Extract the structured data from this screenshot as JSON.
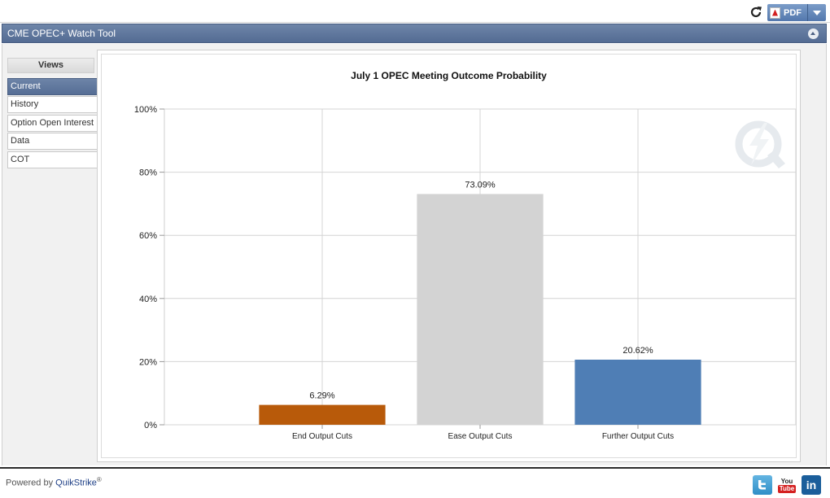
{
  "toolbar": {
    "pdf_label": "PDF"
  },
  "app": {
    "title": "CME OPEC+ Watch Tool"
  },
  "sidebar": {
    "header": "Views",
    "items": [
      {
        "label": "Current",
        "active": true
      },
      {
        "label": "History",
        "active": false
      },
      {
        "label": "Option Open Interest",
        "active": false
      },
      {
        "label": "Data",
        "active": false
      },
      {
        "label": "COT",
        "active": false
      }
    ]
  },
  "chart_data": {
    "type": "bar",
    "title": "July 1 OPEC Meeting Outcome Probability",
    "categories": [
      "End Output Cuts",
      "Ease Output Cuts",
      "Further Output Cuts"
    ],
    "values": [
      6.29,
      73.09,
      20.62
    ],
    "data_labels": [
      "6.29%",
      "73.09%",
      "20.62%"
    ],
    "colors": [
      "#b85a0a",
      "#d3d3d3",
      "#4f7eb5"
    ],
    "ylim": [
      0,
      100
    ],
    "yticks": [
      0,
      20,
      40,
      60,
      80,
      100
    ],
    "ytick_labels": [
      "0%",
      "20%",
      "40%",
      "60%",
      "80%",
      "100%"
    ],
    "xlabel": "",
    "ylabel": "",
    "grid": true
  },
  "footer": {
    "powered_prefix": "Powered by ",
    "powered_brand": "QuikStrike",
    "powered_mark": "®"
  },
  "social": {
    "youtube_top": "You",
    "youtube_bottom": "Tube",
    "linkedin": "in"
  }
}
